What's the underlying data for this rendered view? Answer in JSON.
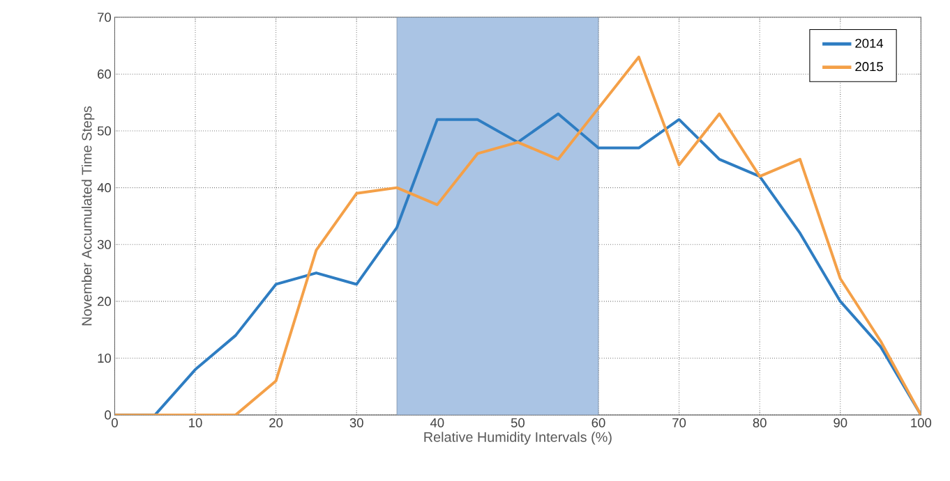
{
  "chart_data": {
    "type": "line",
    "xlabel": "Relative Humidity Intervals (%)",
    "ylabel": "November Accumulated Time Steps",
    "x": [
      0,
      5,
      10,
      15,
      20,
      25,
      30,
      35,
      40,
      45,
      50,
      55,
      60,
      65,
      70,
      75,
      80,
      85,
      90,
      95,
      100
    ],
    "series": [
      {
        "name": "2014",
        "color": "#2e7dc2",
        "values": [
          0,
          0,
          8,
          14,
          23,
          25,
          23,
          33,
          52,
          52,
          48,
          53,
          47,
          47,
          52,
          45,
          42,
          32,
          20,
          12,
          0
        ]
      },
      {
        "name": "2015",
        "color": "#f4a048",
        "values": [
          0,
          0,
          0,
          0,
          6,
          29,
          39,
          40,
          37,
          46,
          48,
          45,
          54,
          63,
          44,
          53,
          42,
          45,
          24,
          13,
          0
        ]
      }
    ],
    "bands": [
      {
        "axis": "x",
        "from": 35,
        "to": 60,
        "color": "#aac4e4"
      }
    ],
    "xlim": [
      0,
      100
    ],
    "xticks": [
      0,
      10,
      20,
      30,
      40,
      50,
      60,
      70,
      80,
      90,
      100
    ],
    "ylim": [
      0,
      70
    ],
    "yticks": [
      0,
      10,
      20,
      30,
      40,
      50,
      60,
      70
    ],
    "grid": true,
    "legend": "top right",
    "marker": "none",
    "line_style": "solid"
  }
}
